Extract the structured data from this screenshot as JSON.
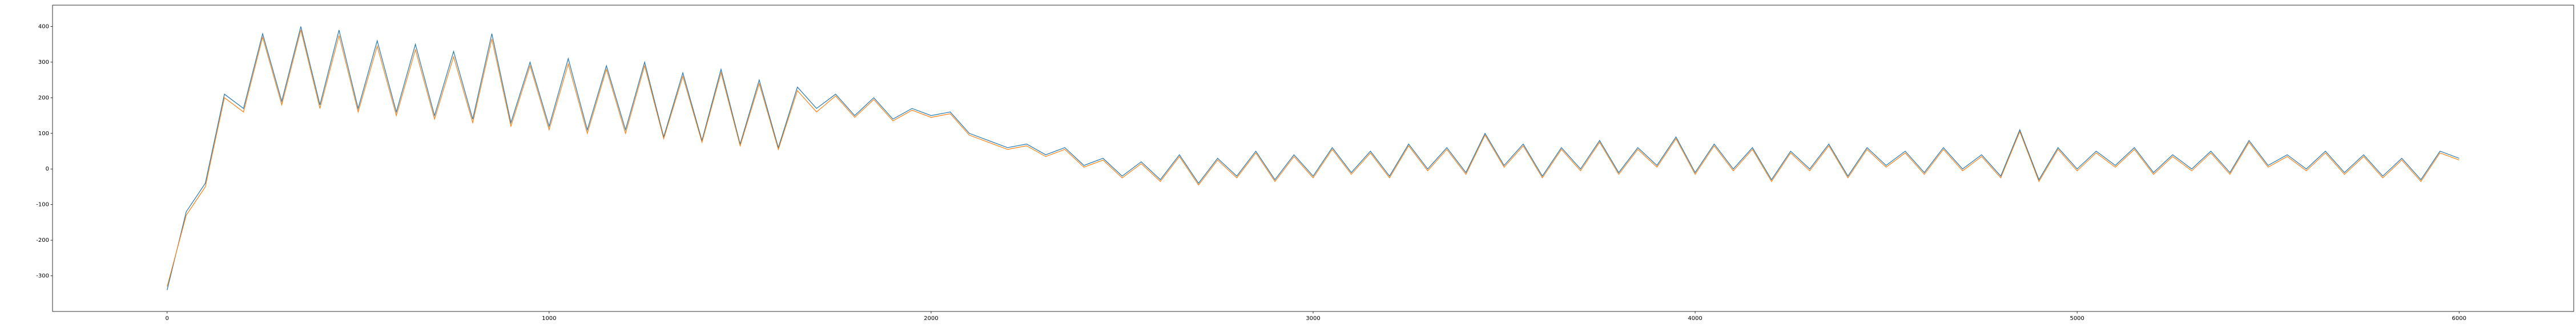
{
  "chart_data": {
    "type": "line",
    "x": [
      0,
      50,
      100,
      150,
      200,
      250,
      300,
      350,
      400,
      450,
      500,
      550,
      600,
      650,
      700,
      750,
      800,
      850,
      900,
      950,
      1000,
      1050,
      1100,
      1150,
      1200,
      1250,
      1300,
      1350,
      1400,
      1450,
      1500,
      1550,
      1600,
      1650,
      1700,
      1750,
      1800,
      1850,
      1900,
      1950,
      2000,
      2050,
      2100,
      2150,
      2200,
      2250,
      2300,
      2350,
      2400,
      2450,
      2500,
      2550,
      2600,
      2650,
      2700,
      2750,
      2800,
      2850,
      2900,
      2950,
      3000,
      3050,
      3100,
      3150,
      3200,
      3250,
      3300,
      3350,
      3400,
      3450,
      3500,
      3550,
      3600,
      3650,
      3700,
      3750,
      3800,
      3850,
      3900,
      3950,
      4000,
      4050,
      4100,
      4150,
      4200,
      4250,
      4300,
      4350,
      4400,
      4450,
      4500,
      4550,
      4600,
      4650,
      4700,
      4750,
      4800,
      4850,
      4900,
      4950,
      5000,
      5050,
      5100,
      5150,
      5200,
      5250,
      5300,
      5350,
      5400,
      5450,
      5500,
      5550,
      5600,
      5650,
      5700,
      5750,
      5800,
      5850,
      5900,
      5950,
      6000
    ],
    "series": [
      {
        "color": "#1f77b4",
        "values": [
          -340,
          -120,
          -40,
          210,
          170,
          380,
          190,
          400,
          180,
          390,
          170,
          360,
          160,
          350,
          150,
          330,
          140,
          380,
          130,
          300,
          120,
          310,
          110,
          290,
          110,
          300,
          90,
          270,
          80,
          280,
          70,
          250,
          60,
          230,
          170,
          210,
          150,
          200,
          140,
          170,
          150,
          160,
          100,
          80,
          60,
          70,
          40,
          60,
          10,
          30,
          -20,
          20,
          -30,
          40,
          -40,
          30,
          -20,
          50,
          -30,
          40,
          -20,
          60,
          -10,
          50,
          -20,
          70,
          0,
          60,
          -10,
          100,
          10,
          70,
          -20,
          60,
          0,
          80,
          -10,
          60,
          10,
          90,
          -10,
          70,
          0,
          60,
          -30,
          50,
          0,
          70,
          -20,
          60,
          10,
          50,
          -10,
          60,
          0,
          40,
          -20,
          110,
          -30,
          60,
          0,
          50,
          10,
          60,
          -10,
          40,
          0,
          50,
          -10,
          80,
          10,
          40,
          0,
          50,
          -10,
          40,
          -20,
          30,
          -30,
          50,
          30
        ]
      },
      {
        "color": "#ff7f0e",
        "values": [
          -330,
          -130,
          -50,
          200,
          160,
          370,
          180,
          390,
          170,
          375,
          160,
          345,
          150,
          335,
          140,
          315,
          130,
          365,
          120,
          290,
          110,
          295,
          100,
          280,
          100,
          290,
          85,
          260,
          75,
          270,
          65,
          240,
          55,
          220,
          160,
          205,
          145,
          195,
          135,
          165,
          145,
          155,
          95,
          75,
          55,
          65,
          35,
          55,
          5,
          25,
          -25,
          15,
          -35,
          35,
          -45,
          25,
          -25,
          45,
          -35,
          35,
          -25,
          55,
          -15,
          45,
          -25,
          65,
          -5,
          55,
          -15,
          95,
          5,
          65,
          -25,
          55,
          -5,
          75,
          -15,
          55,
          5,
          85,
          -15,
          65,
          -5,
          55,
          -35,
          45,
          -5,
          65,
          -25,
          55,
          5,
          45,
          -15,
          55,
          -5,
          35,
          -25,
          105,
          -35,
          55,
          -5,
          45,
          5,
          55,
          -15,
          35,
          -5,
          45,
          -15,
          75,
          5,
          35,
          -5,
          45,
          -15,
          35,
          -25,
          25,
          -35,
          45,
          25
        ]
      }
    ],
    "xlim": [
      -300,
      6300
    ],
    "xticks": [
      0,
      1000,
      2000,
      3000,
      4000,
      5000,
      6000
    ],
    "ylim": [
      -400,
      460
    ],
    "yticks": [
      -300,
      -200,
      -100,
      0,
      100,
      200,
      300,
      400
    ]
  }
}
